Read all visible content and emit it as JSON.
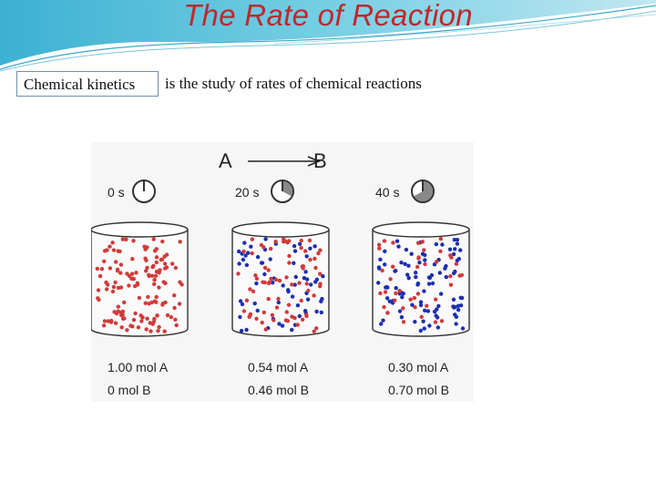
{
  "slide": {
    "title": "The Rate of Reaction",
    "term": "Chemical kinetics",
    "definition": "is the study of rates of chemical reactions"
  },
  "diagram": {
    "reactant": "A",
    "product": "B",
    "colors": {
      "A": "#d23a3a",
      "B": "#1c2fb0",
      "title": "#c0282d"
    },
    "panels": [
      {
        "time": "0 s",
        "clock_fraction": 0.0,
        "mol_A": "1.00 mol A",
        "mol_B": "0 mol B",
        "fraction_B": 0.0
      },
      {
        "time": "20 s",
        "clock_fraction": 0.33,
        "mol_A": "0.54 mol A",
        "mol_B": "0.46 mol B",
        "fraction_B": 0.46
      },
      {
        "time": "40 s",
        "clock_fraction": 0.67,
        "mol_A": "0.30 mol A",
        "mol_B": "0.70 mol B",
        "fraction_B": 0.7
      }
    ]
  }
}
